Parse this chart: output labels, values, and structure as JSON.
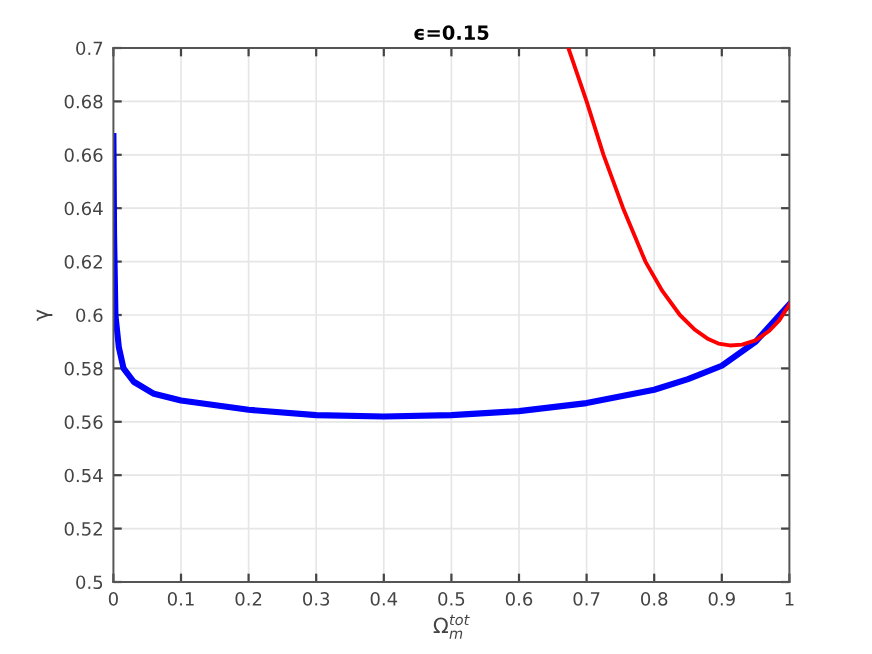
{
  "chart_data": {
    "type": "line",
    "title": "ϵ=0.15",
    "xlabel": "Ω$^{tot}$$_{m}$",
    "ylabel": "γ",
    "xlim": [
      0,
      1
    ],
    "ylim": [
      0.5,
      0.7
    ],
    "xticks": [
      0,
      0.1,
      0.2,
      0.3,
      0.4,
      0.5,
      0.6,
      0.7,
      0.8,
      0.9,
      1
    ],
    "yticks": [
      0.5,
      0.52,
      0.54,
      0.56,
      0.58,
      0.6,
      0.62,
      0.64,
      0.66,
      0.68,
      0.7
    ],
    "grid": true,
    "line_style": "solid",
    "marker": "none",
    "series": [
      {
        "color": "#ff0000",
        "x": [
          0.673,
          0.7,
          0.725,
          0.754,
          0.787,
          0.812,
          0.838,
          0.86,
          0.88,
          0.895,
          0.912,
          0.93,
          0.95,
          0.97,
          0.985,
          1.0
        ],
        "values": [
          0.7,
          0.68,
          0.66,
          0.64,
          0.62,
          0.609,
          0.6,
          0.5945,
          0.591,
          0.5893,
          0.5886,
          0.5889,
          0.5905,
          0.594,
          0.598,
          0.604
        ]
      },
      {
        "color": "#0000ff",
        "x": [
          0,
          0.001,
          0.003,
          0.008,
          0.015,
          0.03,
          0.06,
          0.1,
          0.2,
          0.3,
          0.4,
          0.5,
          0.6,
          0.7,
          0.8,
          0.85,
          0.9,
          0.95,
          1.0
        ],
        "values": [
          0.667,
          0.63,
          0.6,
          0.588,
          0.58,
          0.575,
          0.5705,
          0.568,
          0.5645,
          0.5625,
          0.562,
          0.5625,
          0.564,
          0.567,
          0.572,
          0.576,
          0.581,
          0.59,
          0.604
        ]
      }
    ]
  }
}
